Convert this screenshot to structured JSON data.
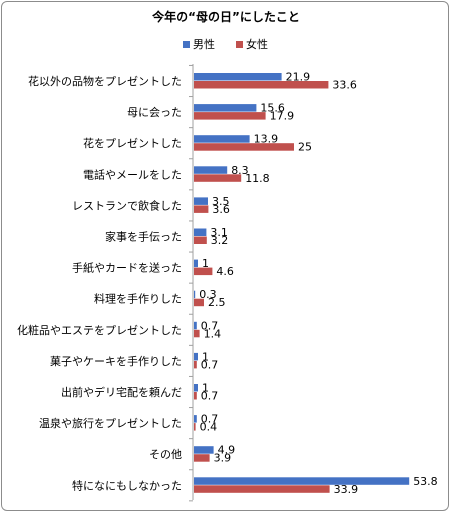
{
  "chart_data": {
    "type": "bar",
    "orientation": "horizontal",
    "title": "今年の“母の日”にしたこと",
    "legend_position": "top-right",
    "colors": {
      "male": "#4472C4",
      "female": "#C0504D"
    },
    "categories": [
      "花以外の品物をプレゼントした",
      "母に会った",
      "花をプレゼントした",
      "電話やメールをした",
      "レストランで飲食した",
      "家事を手伝った",
      "手紙やカードを送った",
      "料理を手作りした",
      "化粧品やエステをプレゼントした",
      "菓子やケーキを手作りした",
      "出前やデリ宅配を頼んだ",
      "温泉や旅行をプレゼントした",
      "その他",
      "特になにもしなかった"
    ],
    "series": [
      {
        "name": "男性",
        "values": [
          21.9,
          15.6,
          13.9,
          8.3,
          3.5,
          3.1,
          1,
          0.3,
          0.7,
          1,
          1,
          0.7,
          4.9,
          53.8
        ]
      },
      {
        "name": "女性",
        "values": [
          33.6,
          17.9,
          25,
          11.8,
          3.6,
          3.2,
          4.6,
          2.5,
          1.4,
          0.7,
          0.7,
          0.4,
          3.9,
          33.9
        ]
      }
    ],
    "xlim": [
      0,
      60
    ]
  }
}
